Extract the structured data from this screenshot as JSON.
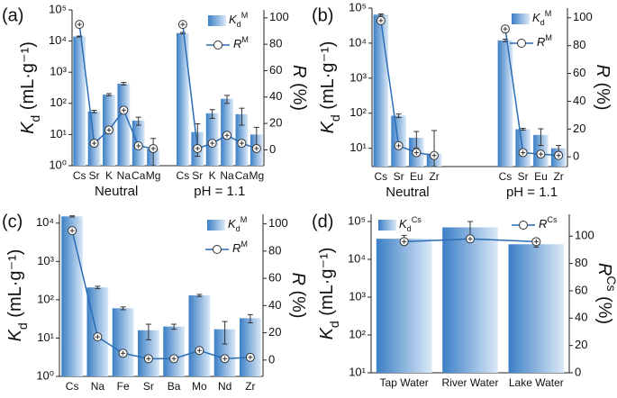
{
  "chart_data": [
    {
      "type": "bar",
      "label": "(a)",
      "log_y": true,
      "ylabel": [
        "K",
        "d",
        " (mL·g⁻¹)"
      ],
      "y2label": [
        "R",
        " (%)"
      ],
      "categories": [
        "Cs",
        "Sr",
        "K",
        "Na",
        "Ca",
        "Mg",
        null,
        "Cs",
        "Sr",
        "K",
        "Na",
        "Ca",
        "Mg"
      ],
      "groups": [
        "Neutral",
        "pH = 1.1"
      ],
      "series": [
        {
          "name": [
            "K",
            "d",
            "M"
          ],
          "color": "#3b7fc6",
          "legend": "upper right",
          "values": [
            14000,
            55,
            190,
            430,
            28,
            3.5,
            null,
            18000,
            12,
            48,
            140,
            45,
            10
          ],
          "errors": [
            500,
            5,
            15,
            40,
            8,
            4,
            null,
            1000,
            10,
            15,
            40,
            25,
            7
          ]
        },
        {
          "name": [
            "R",
            "M"
          ],
          "color": "#2a6cb5",
          "axis": "y2",
          "legend": "upper right",
          "values": [
            95,
            5,
            15,
            30,
            3,
            1,
            null,
            95,
            1,
            5,
            11,
            5,
            1
          ]
        }
      ],
      "ylim": [
        1,
        100000
      ],
      "yticks": [
        {
          "value": 1,
          "label": "10⁰"
        },
        {
          "value": 10,
          "label": "10¹"
        },
        {
          "value": 100,
          "label": "10²"
        },
        {
          "value": 1000,
          "label": "10³"
        },
        {
          "value": 10000,
          "label": "10⁴"
        },
        {
          "value": 100000,
          "label": "10⁵"
        }
      ],
      "y2lim": [
        -12,
        106
      ],
      "y2ticks": [
        0,
        20,
        40,
        60,
        80,
        100
      ]
    },
    {
      "type": "bar",
      "label": "(b)",
      "log_y": true,
      "ylabel": [
        "K",
        "d",
        " (mL·g⁻¹)"
      ],
      "y2label": [
        "R",
        " (%)"
      ],
      "categories": [
        "Cs",
        "Sr",
        "Eu",
        "Zr",
        null,
        null,
        null,
        "Cs",
        "Sr",
        "Eu",
        "Zr"
      ],
      "groups": [
        "Neutral",
        "pH = 1.1"
      ],
      "series": [
        {
          "name": [
            "K",
            "d",
            "M"
          ],
          "color": "#3b7fc6",
          "legend": "upper right",
          "values": [
            65000,
            85,
            20,
            7,
            null,
            null,
            null,
            12000,
            35,
            24,
            10
          ],
          "errors": [
            3000,
            10,
            10,
            25,
            null,
            null,
            null,
            1000,
            2,
            12,
            2
          ]
        },
        {
          "name": [
            "R",
            "M"
          ],
          "color": "#2a6cb5",
          "axis": "y2",
          "legend": "upper right",
          "values": [
            98,
            8,
            3,
            1,
            null,
            null,
            null,
            92,
            3,
            2,
            1
          ]
        }
      ],
      "ylim": [
        3,
        100000
      ],
      "yticks": [
        {
          "value": 10,
          "label": "10¹"
        },
        {
          "value": 100,
          "label": "10²"
        },
        {
          "value": 1000,
          "label": "10³"
        },
        {
          "value": 10000,
          "label": "10⁴"
        },
        {
          "value": 100000,
          "label": "10⁵"
        }
      ],
      "y2lim": [
        -7,
        107
      ],
      "y2ticks": [
        0,
        20,
        40,
        60,
        80,
        100
      ]
    },
    {
      "type": "bar",
      "label": "(c)",
      "log_y": true,
      "ylabel": [
        "K",
        "d",
        " (mL·g⁻¹)"
      ],
      "y2label": [
        "R",
        " (%)"
      ],
      "categories": [
        "Cs",
        "Na",
        "Fe",
        "Sr",
        "Ba",
        "Mo",
        "Nd",
        "Zr"
      ],
      "series": [
        {
          "name": [
            "K",
            "d",
            "M"
          ],
          "color": "#3b7fc6",
          "legend": "upper right",
          "values": [
            15000,
            210,
            60,
            16,
            20,
            130,
            17,
            33
          ],
          "errors": [
            500,
            15,
            5,
            7,
            3,
            8,
            10,
            8
          ]
        },
        {
          "name": [
            "R",
            "M"
          ],
          "color": "#2a6cb5",
          "axis": "y2",
          "legend": "upper right",
          "values": [
            95,
            17,
            5,
            1,
            1,
            7,
            1,
            2
          ]
        }
      ],
      "ylim": [
        1,
        17000
      ],
      "yticks": [
        {
          "value": 1,
          "label": "10⁰"
        },
        {
          "value": 10,
          "label": "10¹"
        },
        {
          "value": 100,
          "label": "10²"
        },
        {
          "value": 1000,
          "label": "10³"
        },
        {
          "value": 10000,
          "label": "10⁴"
        }
      ],
      "y2lim": [
        -12,
        107
      ],
      "y2ticks": [
        0,
        20,
        40,
        60,
        80,
        100
      ]
    },
    {
      "type": "bar",
      "label": "(d)",
      "log_y": true,
      "ylabel": [
        "K",
        "d",
        " (mL·g⁻¹)"
      ],
      "y2label": [
        "R",
        "Cs",
        " (%)"
      ],
      "categories": [
        "Tap Water",
        "River Water",
        "Lake Water"
      ],
      "series": [
        {
          "name": [
            "K",
            "d",
            "Cs"
          ],
          "color": "#3b7fc6",
          "legend": "upper left",
          "values": [
            35000,
            70000,
            25000
          ],
          "errors": [
            8000,
            30000,
            4000
          ]
        },
        {
          "name": [
            "R",
            "Cs"
          ],
          "color": "#2a6cb5",
          "axis": "y2",
          "legend": "upper right",
          "values": [
            96,
            98,
            96
          ]
        }
      ],
      "ylim": [
        10,
        155000
      ],
      "yticks": [
        {
          "value": 10,
          "label": "10¹"
        },
        {
          "value": 100,
          "label": "10²"
        },
        {
          "value": 1000,
          "label": "10³"
        },
        {
          "value": 10000,
          "label": "10⁴"
        },
        {
          "value": 100000,
          "label": "10⁵"
        }
      ],
      "y2lim": [
        0,
        116
      ],
      "y2ticks": [
        0,
        20,
        40,
        60,
        80,
        100
      ]
    }
  ]
}
